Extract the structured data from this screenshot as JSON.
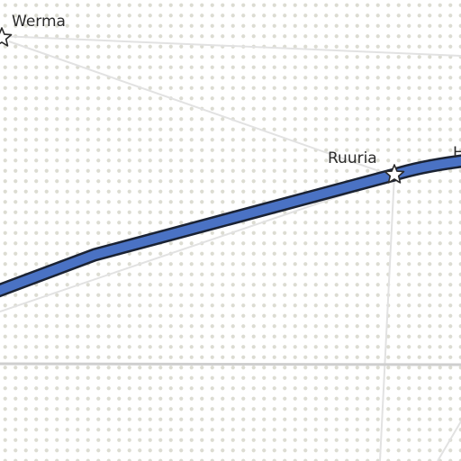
{
  "map": {
    "colors": {
      "background": "#ffffff",
      "dot_pattern": "#dcdcd2",
      "minor_road": "#e2e2e2",
      "major_road": "#cfcfcf",
      "route_fill": "#4a72c4",
      "route_outline": "#1a2233",
      "label": "#2b2b2b"
    },
    "places": [
      {
        "name": "Werma",
        "icon": "star-icon"
      },
      {
        "name": "Ruuria",
        "icon": "star-icon"
      },
      {
        "name": "H",
        "icon": ""
      }
    ]
  }
}
